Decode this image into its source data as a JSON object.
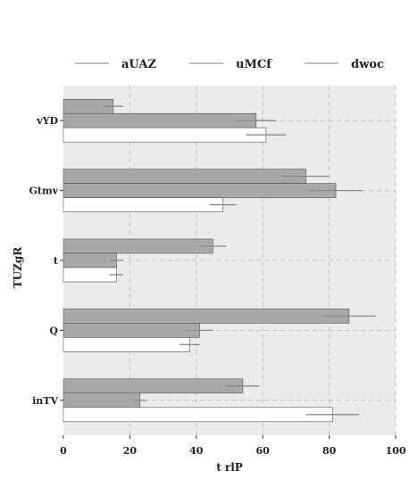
{
  "chart_data": {
    "type": "bar",
    "orientation": "horizontal",
    "title": "",
    "xlabel": "t rlP",
    "ylabel": "TUZgR",
    "xlim": [
      0,
      100
    ],
    "xticks": [
      "0",
      "20",
      "40",
      "60",
      "80",
      "100"
    ],
    "categories": [
      "vYD",
      "Gtmv",
      "t",
      "Q",
      "inTV"
    ],
    "legend_position": "top",
    "grid": true,
    "series": [
      {
        "name": "aUAZ",
        "color": "#a8a8a8",
        "values": [
          15,
          73,
          45,
          86,
          54
        ],
        "errors": [
          3,
          7,
          4,
          8,
          5
        ]
      },
      {
        "name": "uMCf",
        "color": "#a8a8a8",
        "values": [
          58,
          82,
          16,
          41,
          23
        ],
        "errors": [
          6,
          8,
          2,
          4,
          2
        ]
      },
      {
        "name": "dwoc",
        "color": "#ffffff",
        "values": [
          61,
          48,
          16,
          38,
          81
        ],
        "errors": [
          6,
          4,
          2,
          3,
          8
        ]
      }
    ]
  }
}
